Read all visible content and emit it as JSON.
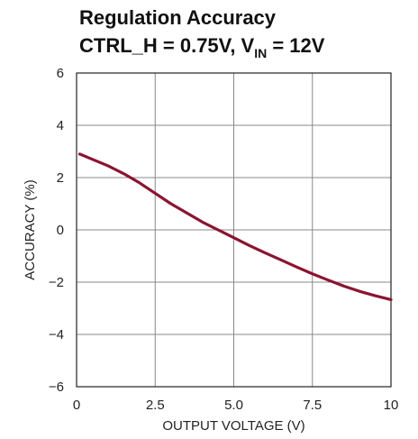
{
  "chart_data": {
    "type": "line",
    "title_line1": "Regulation Accuracy",
    "title_line2_prefix": "CTRL_H = 0.75V, V",
    "title_line2_sub": "IN",
    "title_line2_suffix": " = 12V",
    "xlabel": "OUTPUT VOLTAGE (V)",
    "ylabel": "ACCURACY (%)",
    "xlim": [
      0,
      10
    ],
    "ylim": [
      -6,
      6
    ],
    "x_ticks": [
      0,
      2.5,
      5.0,
      7.5,
      10
    ],
    "x_tick_labels": [
      "0",
      "2.5",
      "5.0",
      "7.5",
      "10"
    ],
    "y_ticks": [
      -6,
      -4,
      -2,
      0,
      2,
      4,
      6
    ],
    "y_tick_labels": [
      "−6",
      "−4",
      "−2",
      "0",
      "2",
      "4",
      "6"
    ],
    "grid": true,
    "series": [
      {
        "color": "#8b1430",
        "x": [
          0.1,
          0.5,
          1.0,
          1.5,
          2.0,
          2.5,
          3.0,
          3.5,
          4.0,
          4.5,
          5.0,
          5.5,
          6.0,
          6.5,
          7.0,
          7.5,
          8.0,
          8.5,
          9.0,
          9.5,
          10.0
        ],
        "y": [
          2.9,
          2.7,
          2.45,
          2.15,
          1.8,
          1.4,
          1.0,
          0.65,
          0.3,
          0.0,
          -0.3,
          -0.6,
          -0.88,
          -1.15,
          -1.42,
          -1.68,
          -1.92,
          -2.15,
          -2.35,
          -2.52,
          -2.67
        ]
      }
    ]
  }
}
